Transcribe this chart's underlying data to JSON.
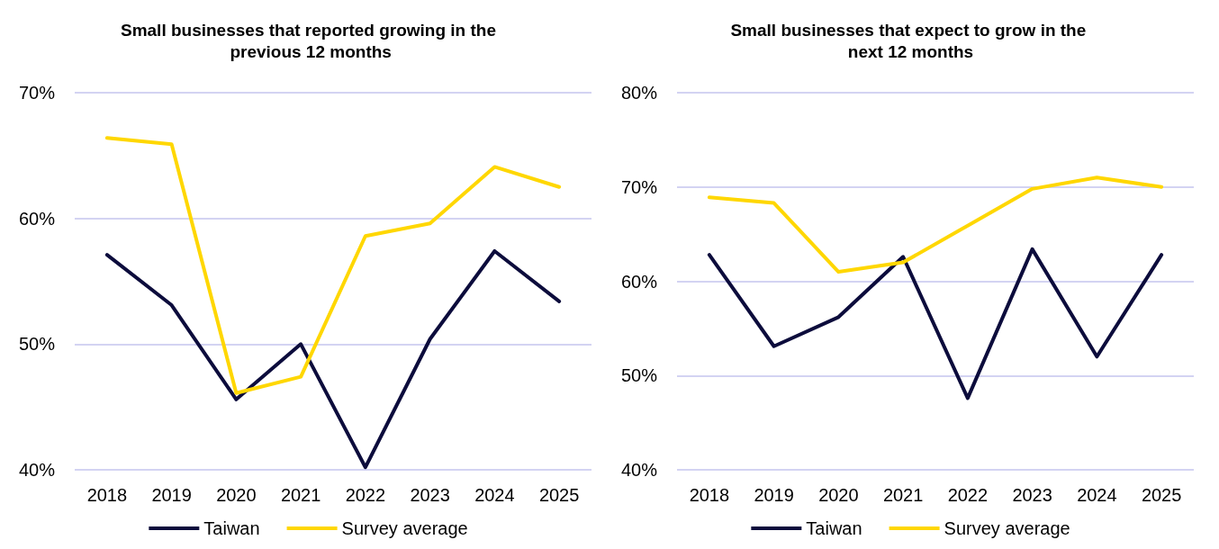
{
  "chart_data": [
    {
      "type": "line",
      "title": "Small businesses that reported growing in the previous 12 months",
      "categories": [
        "2018",
        "2019",
        "2020",
        "2021",
        "2022",
        "2023",
        "2024",
        "2025"
      ],
      "series": [
        {
          "name": "Taiwan",
          "color": "#0c0c3c",
          "values": [
            57.1,
            53.1,
            45.6,
            50.0,
            40.2,
            50.4,
            57.4,
            53.4
          ]
        },
        {
          "name": "Survey average",
          "color": "#ffd700",
          "values": [
            66.4,
            65.9,
            46.1,
            47.4,
            58.6,
            59.6,
            64.1,
            62.5
          ]
        }
      ],
      "ylim": [
        40,
        70
      ],
      "yticks": [
        {
          "value": 40,
          "label": "40%"
        },
        {
          "value": 50,
          "label": "50%"
        },
        {
          "value": 60,
          "label": "60%"
        },
        {
          "value": 70,
          "label": "70%"
        }
      ],
      "grid": "y",
      "legend": "bottom",
      "marker": "none",
      "line_style": "solid"
    },
    {
      "type": "line",
      "title": "Small businesses that expect to grow in the next 12 months",
      "categories": [
        "2018",
        "2019",
        "2020",
        "2021",
        "2022",
        "2023",
        "2024",
        "2025"
      ],
      "series": [
        {
          "name": "Taiwan",
          "color": "#0c0c3c",
          "values": [
            62.8,
            53.1,
            56.2,
            62.6,
            47.6,
            63.4,
            52.0,
            62.8
          ]
        },
        {
          "name": "Survey average",
          "color": "#ffd700",
          "values": [
            68.9,
            68.3,
            61.0,
            62.0,
            65.9,
            69.8,
            71.0,
            70.0
          ]
        }
      ],
      "ylim": [
        40,
        80
      ],
      "yticks": [
        {
          "value": 40,
          "label": "40%"
        },
        {
          "value": 50,
          "label": "50%"
        },
        {
          "value": 60,
          "label": "60%"
        },
        {
          "value": 70,
          "label": "70%"
        },
        {
          "value": 80,
          "label": "80%"
        }
      ],
      "grid": "y",
      "legend": "bottom",
      "marker": "none",
      "line_style": "solid"
    }
  ]
}
